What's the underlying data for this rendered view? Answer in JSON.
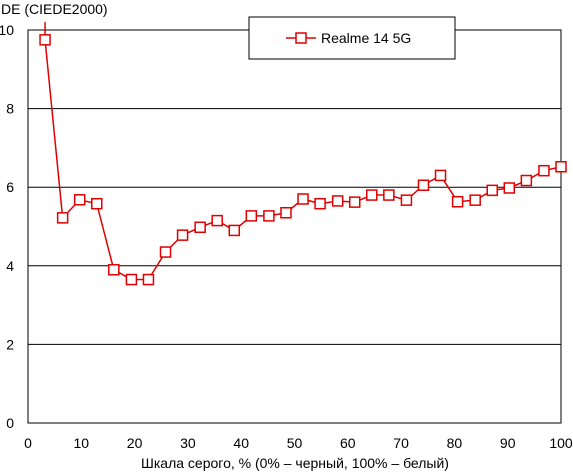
{
  "chart_data": {
    "type": "line",
    "title": "",
    "ylabel": "DE (CIEDE2000)",
    "xlabel": "Шкала серого, % (0% – черный, 100% – белый)",
    "xlim": [
      0,
      100
    ],
    "ylim": [
      0,
      10
    ],
    "xticks": [
      0,
      10,
      20,
      30,
      40,
      50,
      60,
      70,
      80,
      90,
      100
    ],
    "yticks": [
      0,
      2,
      4,
      6,
      8,
      10
    ],
    "grid": "horizontal",
    "legend_position": "top-center",
    "series": [
      {
        "name": "Realme 14 5G",
        "color": "#e00000",
        "marker": "square",
        "x": [
          3.2,
          6.5,
          9.7,
          12.9,
          16.1,
          19.4,
          22.6,
          25.8,
          29.0,
          32.3,
          35.5,
          38.7,
          41.9,
          45.2,
          48.4,
          51.6,
          54.8,
          58.1,
          61.3,
          64.5,
          67.7,
          71.0,
          74.2,
          77.4,
          80.6,
          83.9,
          87.1,
          90.3,
          93.5,
          96.8,
          100
        ],
        "y": [
          9.75,
          5.22,
          5.68,
          5.58,
          3.9,
          3.65,
          3.65,
          4.35,
          4.78,
          4.98,
          5.15,
          4.9,
          5.27,
          5.27,
          5.35,
          5.7,
          5.58,
          5.65,
          5.62,
          5.8,
          5.8,
          5.67,
          6.05,
          6.3,
          5.63,
          5.67,
          5.92,
          5.98,
          6.17,
          6.42,
          6.52
        ],
        "lead_in": {
          "x": 3.2,
          "y": 10.2
        }
      }
    ]
  }
}
